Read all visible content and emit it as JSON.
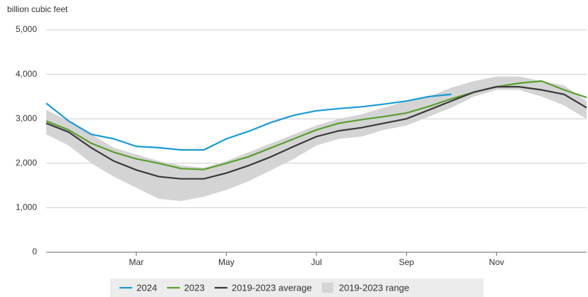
{
  "chart_data": {
    "type": "line",
    "subtitle": "billion cubic feet",
    "categories": [
      null,
      null,
      null,
      null,
      "Mar",
      null,
      null,
      null,
      "May",
      null,
      null,
      null,
      "Jul",
      null,
      null,
      null,
      "Sep",
      null,
      null,
      null,
      "Nov",
      null,
      null,
      null,
      null
    ],
    "ylim": [
      0,
      5000
    ],
    "yticks": [
      0,
      {
        "value": 1000,
        "label": "1,000"
      },
      {
        "value": 2000,
        "label": "2,000"
      },
      {
        "value": 3000,
        "label": "3,000"
      },
      {
        "value": 4000,
        "label": "4,000"
      },
      {
        "value": 5000,
        "label": "5,000"
      }
    ],
    "grid": true,
    "legend": "bottom",
    "series": [
      {
        "name": "2024",
        "color": "#1a9ad6",
        "values": [
          3350,
          2950,
          2650,
          2550,
          2380,
          2350,
          2300,
          2300,
          2550,
          2720,
          2920,
          3080,
          3180,
          3230,
          3270,
          3330,
          3400,
          3500,
          3550,
          null,
          null,
          null,
          null,
          null,
          null
        ]
      },
      {
        "name": "2023",
        "color": "#5a9e2f",
        "values": [
          2950,
          2750,
          2450,
          2250,
          2100,
          2000,
          1880,
          1860,
          2000,
          2150,
          2350,
          2550,
          2750,
          2900,
          2980,
          3050,
          3130,
          3280,
          3450,
          3600,
          3720,
          3800,
          3850,
          3650,
          3480
        ]
      },
      {
        "name": "2019-2023 average",
        "color": "#3a3a3a",
        "values": [
          2900,
          2700,
          2350,
          2050,
          1850,
          1700,
          1650,
          1650,
          1780,
          1950,
          2150,
          2380,
          2600,
          2730,
          2800,
          2900,
          3000,
          3200,
          3400,
          3600,
          3720,
          3720,
          3650,
          3550,
          3250
        ]
      },
      {
        "name": "2019-2023 range",
        "color": "#d4d4d4",
        "low": [
          2650,
          2400,
          2000,
          1700,
          1450,
          1200,
          1150,
          1250,
          1400,
          1600,
          1850,
          2100,
          2400,
          2550,
          2600,
          2750,
          2850,
          3050,
          3250,
          3500,
          3650,
          3650,
          3500,
          3300,
          3000
        ],
        "high": [
          3200,
          2950,
          2650,
          2350,
          2200,
          2050,
          1950,
          1900,
          2050,
          2250,
          2450,
          2650,
          2850,
          3000,
          3100,
          3250,
          3400,
          3500,
          3700,
          3850,
          3950,
          3950,
          3850,
          3750,
          3400
        ]
      }
    ]
  }
}
